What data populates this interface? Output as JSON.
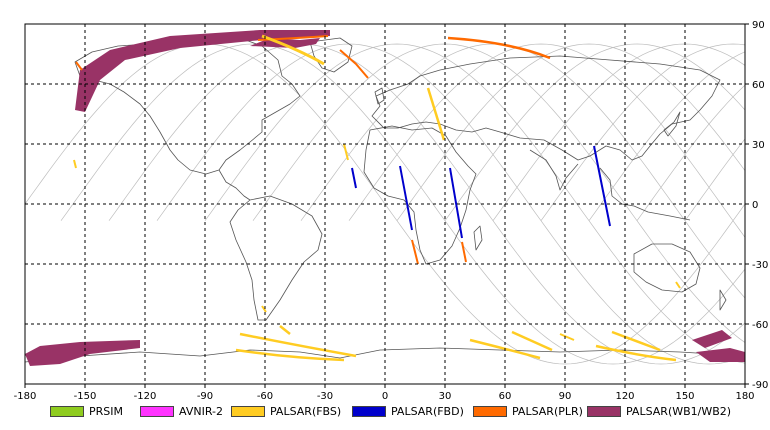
{
  "map": {
    "projection": "equirectangular",
    "lon_range": [
      -180,
      180
    ],
    "lat_range": [
      -90,
      90
    ],
    "lon_ticks": [
      "-180",
      "-150",
      "-120",
      "-90",
      "-60",
      "-30",
      "0",
      "30",
      "60",
      "90",
      "120",
      "150",
      "180"
    ],
    "lat_ticks": [
      "90",
      "60",
      "30",
      "0",
      "-30",
      "-60",
      "-90"
    ],
    "grid": "dashed, every 30 degrees",
    "colors": {
      "coast": "#555555",
      "orbit": "#bdbdbd",
      "grid": "#000000"
    }
  },
  "legend": [
    {
      "label": "PRSIM",
      "color": "#8fcc1f"
    },
    {
      "label": "AVNIR-2",
      "color": "#ff33ff"
    },
    {
      "label": "PALSAR(FBS)",
      "color": "#ffcc22"
    },
    {
      "label": "PALSAR(FBD)",
      "color": "#0000cc"
    },
    {
      "label": "PALSAR(PLR)",
      "color": "#ff6a00"
    },
    {
      "label": "PALSAR(WB1/WB2)",
      "color": "#993366"
    }
  ]
}
